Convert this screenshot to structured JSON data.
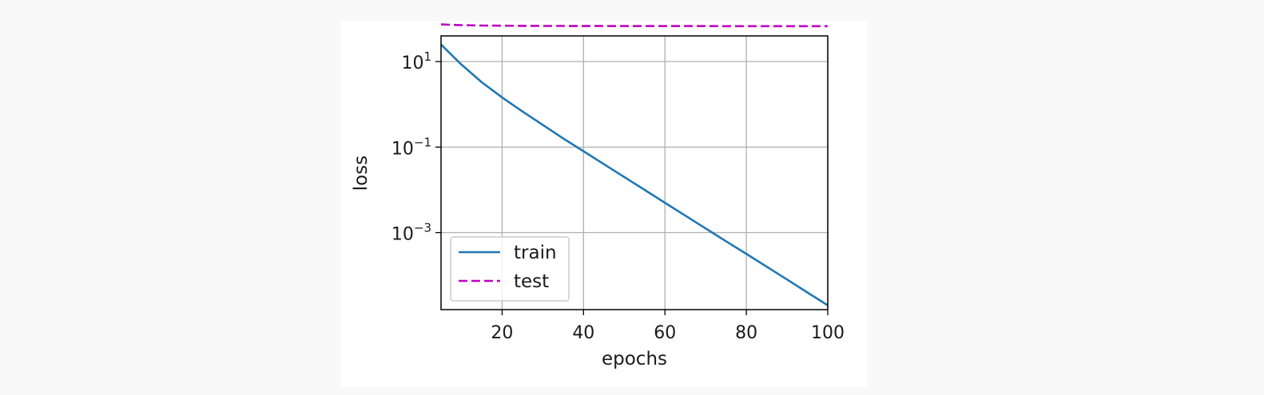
{
  "chart_data": {
    "type": "line",
    "xlabel": "epochs",
    "ylabel": "loss",
    "xlim": [
      5,
      100
    ],
    "ylim_log10": [
      -4.8,
      1.6
    ],
    "yscale": "log",
    "grid": true,
    "legend_position": "lower-left",
    "x_ticks": [
      {
        "value": 20,
        "label": "20"
      },
      {
        "value": 40,
        "label": "40"
      },
      {
        "value": 60,
        "label": "60"
      },
      {
        "value": 80,
        "label": "80"
      },
      {
        "value": 100,
        "label": "100"
      }
    ],
    "y_ticks": [
      {
        "log10": 1,
        "base": "10",
        "exp": "1"
      },
      {
        "log10": -1,
        "base": "10",
        "exp": "−1"
      },
      {
        "log10": -3,
        "base": "10",
        "exp": "−3"
      }
    ],
    "x": [
      5,
      10,
      15,
      20,
      25,
      30,
      35,
      40,
      45,
      50,
      55,
      60,
      65,
      70,
      75,
      80,
      85,
      90,
      95,
      100
    ],
    "series": [
      {
        "name": "train",
        "color": "#1f77b4",
        "dash": "solid",
        "values": [
          25,
          8.5,
          3.3,
          1.45,
          0.68,
          0.33,
          0.16,
          0.08,
          0.04,
          0.02,
          0.01,
          0.005,
          0.0025,
          0.00125,
          0.00063,
          0.00032,
          0.00016,
          8e-05,
          4e-05,
          2e-05
        ]
      },
      {
        "name": "test",
        "color": "#bf00bf",
        "dash": "dashed",
        "values": [
          74,
          71,
          69.5,
          69,
          68.5,
          68.2,
          68,
          67.8,
          67.7,
          67.6,
          67.5,
          67.5,
          67.4,
          67.4,
          67.3,
          67.3,
          67.3,
          67.2,
          67.2,
          67.2
        ]
      }
    ]
  }
}
